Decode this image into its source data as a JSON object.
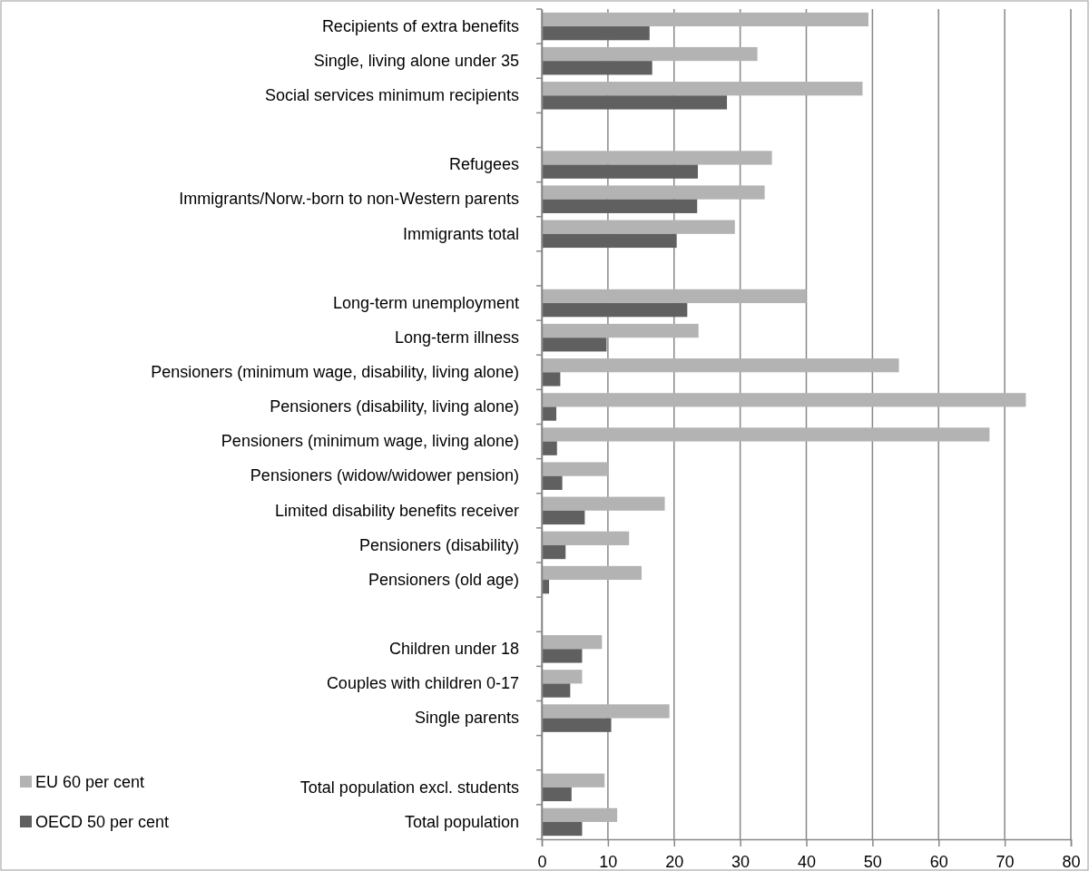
{
  "chart_data": {
    "type": "bar",
    "orientation": "horizontal",
    "categories": [
      "Recipients of extra benefits",
      "Single, living alone under 35",
      "Social services minimum recipients",
      null,
      "Refugees",
      "Immigrants/Norw.-born to non-Western parents",
      "Immigrants total",
      null,
      "Long-term unemployment",
      "Long-term illness",
      "Pensioners (minimum wage, disability, living alone)",
      "Pensioners (disability, living alone)",
      "Pensioners (minimum wage, living alone)",
      "Pensioners (widow/widower pension)",
      "Limited disability benefits receiver",
      "Pensioners (disability)",
      "Pensioners (old age)",
      null,
      "Children under 18",
      "Couples with children 0-17",
      "Single parents",
      null,
      "Total population excl. students",
      "Total population"
    ],
    "series": [
      {
        "name": "EU 60 per cent",
        "color": "#b3b3b3",
        "values": [
          49.4,
          32.6,
          48.5,
          null,
          34.8,
          33.7,
          29.2,
          null,
          40.0,
          23.7,
          54.0,
          73.2,
          67.7,
          10.0,
          18.6,
          13.2,
          15.1,
          null,
          9.1,
          6.1,
          19.3,
          null,
          9.5,
          11.4
        ]
      },
      {
        "name": "OECD 50 per cent",
        "color": "#606060",
        "values": [
          16.3,
          16.7,
          28.0,
          null,
          23.6,
          23.5,
          20.4,
          null,
          22.0,
          9.8,
          2.8,
          2.2,
          2.3,
          3.1,
          6.5,
          3.6,
          1.1,
          null,
          6.1,
          4.3,
          10.5,
          null,
          4.5,
          6.1
        ]
      }
    ],
    "xlim": [
      0,
      80
    ],
    "xticks": [
      0,
      10,
      20,
      30,
      40,
      50,
      60,
      70,
      80
    ],
    "grid": "x",
    "legend": "bottom left"
  }
}
